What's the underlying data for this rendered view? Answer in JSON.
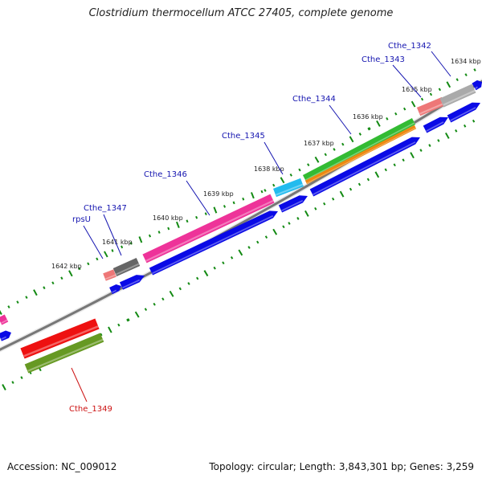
{
  "title": "Clostridium thermocellum ATCC 27405, complete genome",
  "accession": "Accession: NC_009012",
  "topology": "Topology: circular; Length: 3,843,301 bp; Genes: 3,259",
  "colors": {
    "backbone": "#777777",
    "tick": "#138a13",
    "label_blue": "#1515b0",
    "label_red": "#cc1111",
    "cds": "#0a0ae6"
  },
  "kbp_labels": [
    "1634 kbp",
    "1635 kbp",
    "1636 kbp",
    "1637 kbp",
    "1638 kbp",
    "1639 kbp",
    "1640 kbp",
    "1641 kbp",
    "1642 kbp"
  ],
  "genes": [
    {
      "name": "Cthe_1342",
      "color": "#1515b0"
    },
    {
      "name": "Cthe_1343",
      "color": "#1515b0"
    },
    {
      "name": "Cthe_1344",
      "color": "#1515b0"
    },
    {
      "name": "Cthe_1345",
      "color": "#1515b0"
    },
    {
      "name": "Cthe_1346",
      "color": "#1515b0"
    },
    {
      "name": "Cthe_1347",
      "color": "#1515b0"
    },
    {
      "name": "rpsU",
      "color": "#1515b0"
    },
    {
      "name": "Cthe_1349",
      "color": "#cc1111"
    }
  ]
}
